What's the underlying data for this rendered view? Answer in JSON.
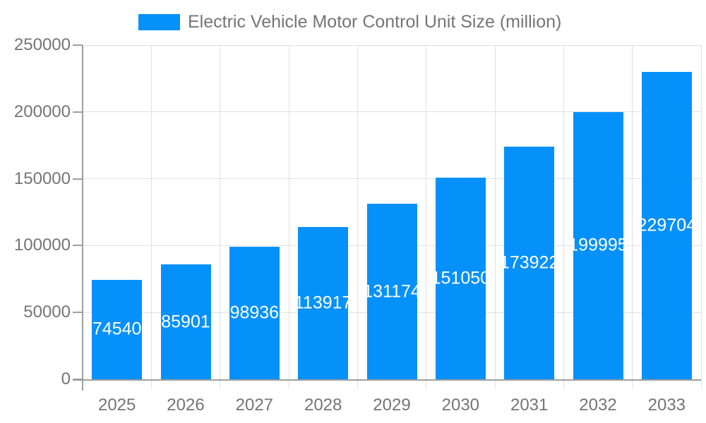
{
  "chart_data": {
    "type": "bar",
    "title": "Electric Vehicle Motor Control Unit Size (million)",
    "categories": [
      "2025",
      "2026",
      "2027",
      "2028",
      "2029",
      "2030",
      "2031",
      "2032",
      "2033"
    ],
    "values": [
      74540,
      85901,
      98936,
      113917,
      131174,
      151050,
      173922,
      199995,
      229704
    ],
    "bar_value_labels": [
      "74540",
      "85901",
      "98936",
      "113917",
      "131174",
      "151050",
      "173922",
      "199995",
      "229704"
    ],
    "xlabel": "",
    "ylabel": "",
    "ylim": [
      0,
      250000
    ],
    "yticks": [
      0,
      50000,
      100000,
      150000,
      200000,
      250000
    ],
    "ytick_labels": [
      "0",
      "50000",
      "100000",
      "150000",
      "200000",
      "250000"
    ],
    "grid": true,
    "legend_position": "top",
    "colors": {
      "bar": "#0691fa",
      "axis_text": "#757575",
      "grid": "#e0e0e0",
      "axis_line": "#9e9e9e",
      "bar_label": "#ffffff"
    }
  }
}
